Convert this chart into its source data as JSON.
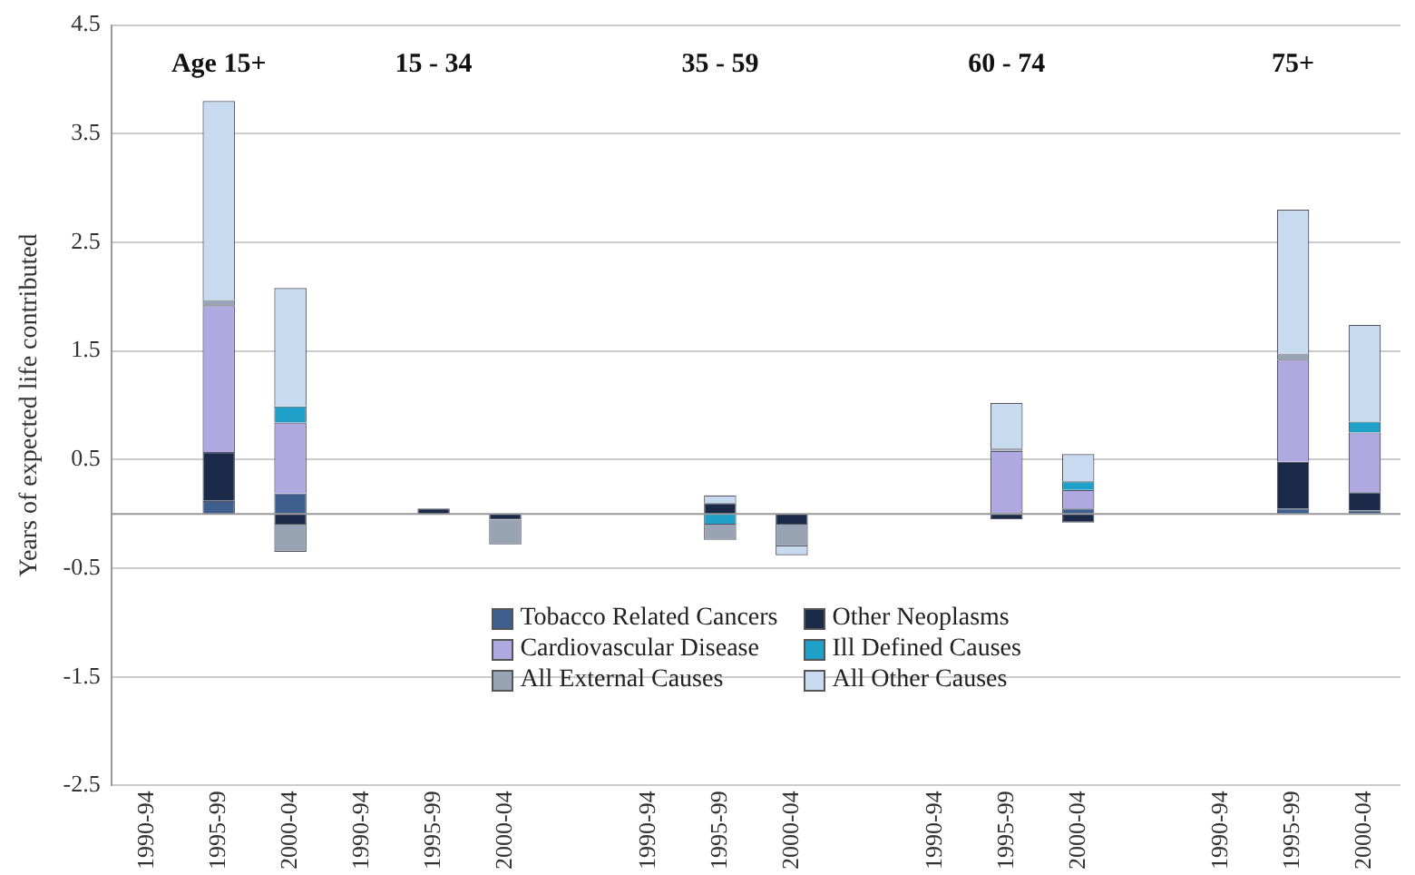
{
  "chart_data": {
    "type": "bar",
    "stacked": true,
    "ylabel": "Years of expected life contributed",
    "categories": [
      "1990-94",
      "1995-99",
      "2000-04",
      "1990-94",
      "1995-99",
      "2000-04",
      null,
      "1990-94",
      "1995-99",
      "2000-04",
      null,
      "1990-94",
      "1995-99",
      "2000-04",
      null,
      "1990-94",
      "1995-99",
      "2000-04"
    ],
    "series": [
      {
        "name": "Tobacco Related Cancers",
        "color": "#3f5f8f",
        "values": [
          0,
          0.12,
          0.19,
          0,
          0,
          0,
          null,
          0,
          0,
          0,
          null,
          0,
          0,
          0.05,
          null,
          0,
          0.05,
          0.03
        ]
      },
      {
        "name": "Other Neoplasms",
        "color": "#1c2a4a",
        "values": [
          0,
          0.45,
          -0.1,
          0,
          0.05,
          -0.05,
          null,
          0,
          0.1,
          -0.1,
          null,
          0,
          -0.05,
          -0.08,
          null,
          0,
          0.43,
          0.17
        ]
      },
      {
        "name": "Cardiovascular Disease",
        "color": "#b0a8e0",
        "values": [
          0,
          1.35,
          0.65,
          0,
          0,
          0,
          null,
          0,
          0,
          0,
          null,
          0,
          0.58,
          0.17,
          null,
          0,
          0.94,
          0.55
        ]
      },
      {
        "name": "Ill Defined Causes",
        "color": "#1ea0c8",
        "values": [
          0,
          0,
          0.15,
          0,
          0,
          0,
          null,
          0,
          -0.1,
          0,
          null,
          0,
          0,
          0.08,
          null,
          0,
          0,
          0.1
        ]
      },
      {
        "name": "All External Causes",
        "color": "#98a4b4",
        "values": [
          0,
          0.05,
          -0.25,
          0,
          0,
          -0.23,
          null,
          0,
          -0.14,
          -0.2,
          null,
          0,
          0.02,
          0,
          null,
          0,
          0.05,
          0
        ]
      },
      {
        "name": "All Other Causes",
        "color": "#c8daf0",
        "values": [
          0,
          1.83,
          1.09,
          0,
          0,
          0,
          null,
          0,
          0.07,
          -0.08,
          null,
          0,
          0.42,
          0.25,
          null,
          0,
          1.33,
          0.89
        ]
      }
    ],
    "ylim": [
      -2.5,
      4.5
    ],
    "yticks": [
      -2.5,
      -1.5,
      -0.5,
      0.5,
      1.5,
      2.5,
      3.5,
      4.5
    ],
    "grid": "y",
    "legend": "bottom",
    "annotations": [
      "Age 15+",
      "15 - 34",
      "35 - 59",
      "60 - 74",
      "75+"
    ]
  }
}
